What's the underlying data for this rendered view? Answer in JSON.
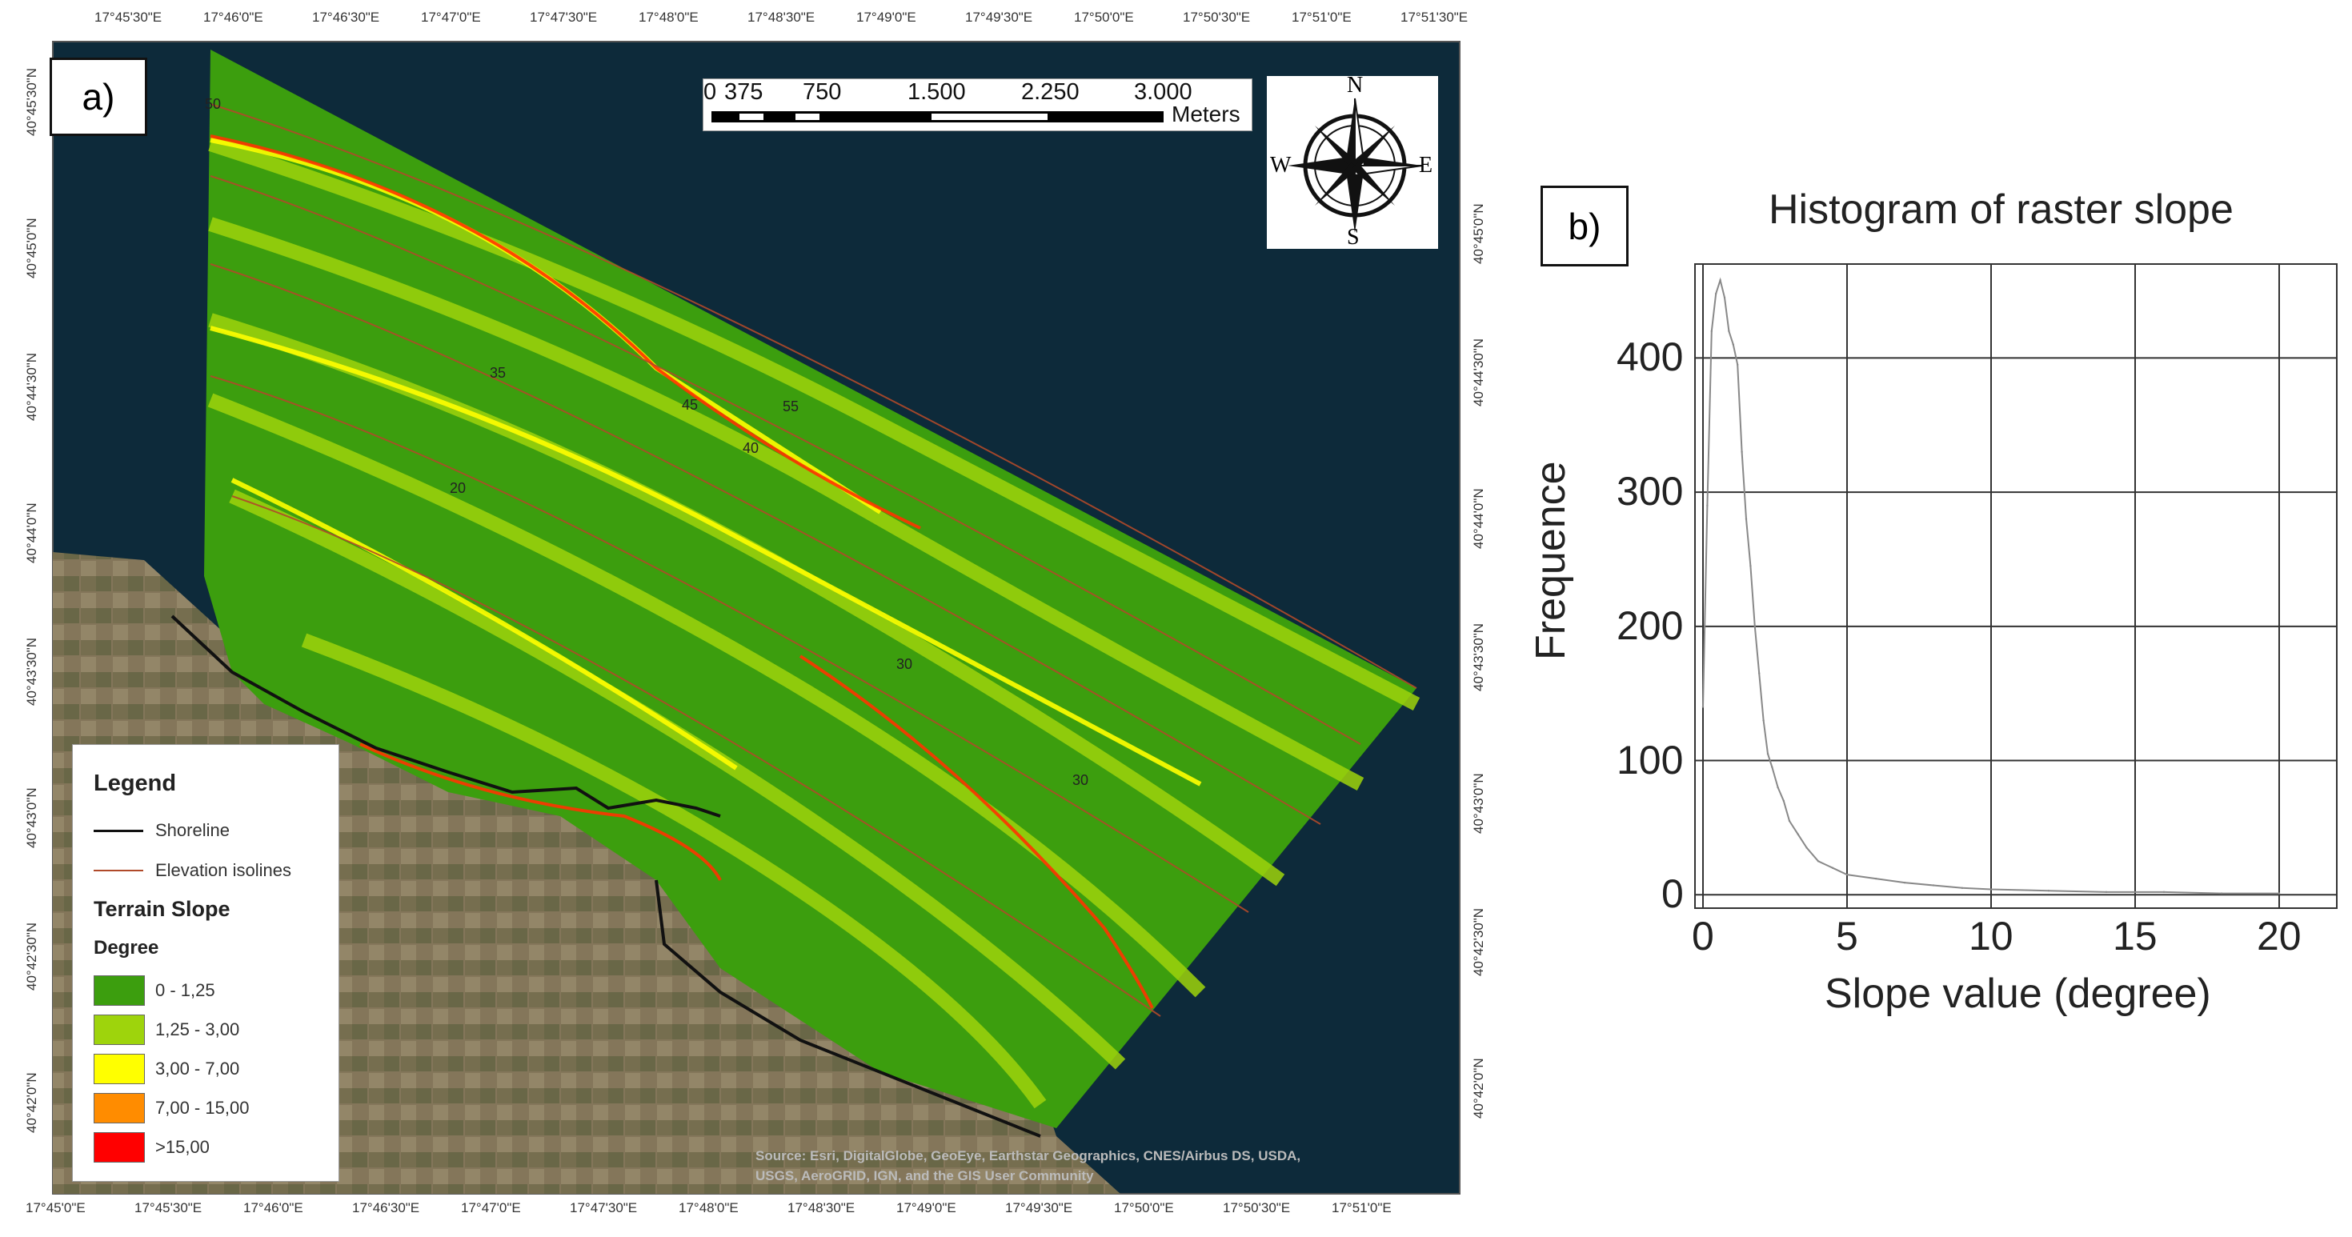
{
  "panel_a": {
    "label": "a)",
    "top_longitudes": [
      "17°45'30\"E",
      "17°46'0\"E",
      "17°46'30\"E",
      "17°47'0\"E",
      "17°47'30\"E",
      "17°48'0\"E",
      "17°48'30\"E",
      "17°49'0\"E",
      "17°49'30\"E",
      "17°50'0\"E",
      "17°50'30\"E",
      "17°51'0\"E",
      "17°51'30\"E"
    ],
    "bottom_longitudes": [
      "17°45'0\"E",
      "17°45'30\"E",
      "17°46'0\"E",
      "17°46'30\"E",
      "17°47'0\"E",
      "17°47'30\"E",
      "17°48'0\"E",
      "17°48'30\"E",
      "17°49'0\"E",
      "17°49'30\"E",
      "17°50'0\"E",
      "17°50'30\"E",
      "17°51'0\"E"
    ],
    "left_latitudes": [
      "40°45'30\"N",
      "40°45'0\"N",
      "40°44'30\"N",
      "40°44'0\"N",
      "40°43'30\"N",
      "40°43'0\"N",
      "40°42'30\"N",
      "40°42'0\"N"
    ],
    "right_latitudes": [
      "40°45'0\"N",
      "40°44'30\"N",
      "40°44'0\"N",
      "40°43'30\"N",
      "40°43'0\"N",
      "40°42'30\"N",
      "40°42'0\"N"
    ],
    "scalebar": {
      "ticks": [
        "0",
        "375",
        "750",
        "1.500",
        "2.250",
        "3.000"
      ],
      "unit": "Meters"
    },
    "compass": {
      "n": "N",
      "s": "S",
      "e": "E",
      "w": "W"
    },
    "isoline_labels": [
      "50",
      "35",
      "45",
      "55",
      "40",
      "20",
      "30",
      "30"
    ],
    "legend": {
      "title": "Legend",
      "shoreline": "Shoreline",
      "isolines": "Elevation isolines",
      "slope_title": "Terrain Slope",
      "unit": "Degree",
      "classes": [
        {
          "label": "0 - 1,25",
          "color": "#3c9e0e"
        },
        {
          "label": "1,25 - 3,00",
          "color": "#9ed40c"
        },
        {
          "label": "3,00 - 7,00",
          "color": "#ffff00"
        },
        {
          "label": "7,00 - 15,00",
          "color": "#ff8c00"
        },
        {
          "label": ">15,00",
          "color": "#ff0000"
        }
      ]
    },
    "attribution_1": "Source: Esri, DigitalGlobe, GeoEye, Earthstar Geographics, CNES/Airbus DS, USDA,",
    "attribution_2": "USGS, AeroGRID, IGN, and the GIS User Community",
    "colors": {
      "sea": "#0d2a3a",
      "shoreline": "#111111",
      "isoline": "#b04a2a"
    }
  },
  "panel_b": {
    "label": "b)",
    "chart_data": {
      "type": "line",
      "title": "Histogram of raster slope",
      "xlabel": "Slope value (degree)",
      "ylabel": "Frequence",
      "xlim": [
        0,
        22
      ],
      "ylim": [
        -10,
        470
      ],
      "xticks": [
        "0",
        "5",
        "10",
        "15",
        "20"
      ],
      "yticks": [
        "0",
        "100",
        "200",
        "300",
        "400"
      ],
      "grid": true,
      "x": [
        0,
        0.15,
        0.3,
        0.45,
        0.6,
        0.75,
        0.9,
        1.05,
        1.2,
        1.35,
        1.5,
        1.65,
        1.8,
        1.95,
        2.1,
        2.25,
        2.4,
        2.6,
        2.8,
        3.0,
        3.3,
        3.6,
        4.0,
        4.5,
        5,
        6,
        7,
        8,
        9,
        10,
        12,
        14,
        16,
        18,
        20
      ],
      "values": [
        140,
        290,
        420,
        448,
        458,
        445,
        420,
        410,
        395,
        330,
        280,
        245,
        200,
        165,
        130,
        105,
        95,
        80,
        70,
        55,
        45,
        35,
        25,
        20,
        15,
        12,
        9,
        7,
        5,
        4,
        3,
        2,
        2,
        1,
        1
      ]
    }
  }
}
